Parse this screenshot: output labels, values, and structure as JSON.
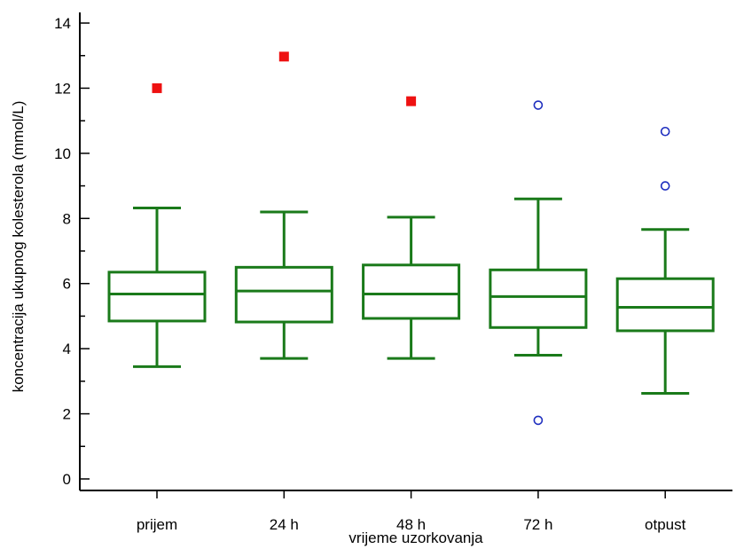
{
  "chart_data": {
    "type": "box",
    "xlabel": "vrijeme uzorkovanja",
    "ylabel": "koncentracija ukupnog kolesterola (mmol/L)",
    "ylim": [
      0,
      14
    ],
    "yticks": [
      0,
      2,
      4,
      6,
      8,
      10,
      12,
      14
    ],
    "grid": false,
    "colors": {
      "box": "#1a7a1a",
      "far_outlier": "#ee1111",
      "outlier": "#1f2fbf"
    },
    "categories": [
      "prijem",
      "24 h",
      "48 h",
      "72 h",
      "otpust"
    ],
    "boxes": [
      {
        "category": "prijem",
        "whisker_low": 3.45,
        "q1": 4.85,
        "median": 5.68,
        "q3": 6.35,
        "whisker_high": 8.32,
        "outliers": [],
        "far_outliers": [
          12.0
        ]
      },
      {
        "category": "24 h",
        "whisker_low": 3.7,
        "q1": 4.82,
        "median": 5.77,
        "q3": 6.5,
        "whisker_high": 8.2,
        "outliers": [],
        "far_outliers": [
          12.97
        ]
      },
      {
        "category": "48 h",
        "whisker_low": 3.7,
        "q1": 4.93,
        "median": 5.68,
        "q3": 6.57,
        "whisker_high": 8.04,
        "outliers": [],
        "far_outliers": [
          11.6
        ]
      },
      {
        "category": "72 h",
        "whisker_low": 3.8,
        "q1": 4.65,
        "median": 5.6,
        "q3": 6.42,
        "whisker_high": 8.6,
        "outliers": [
          11.48,
          1.8
        ],
        "far_outliers": []
      },
      {
        "category": "otpust",
        "whisker_low": 2.63,
        "q1": 4.55,
        "median": 5.27,
        "q3": 6.15,
        "whisker_high": 7.66,
        "outliers": [
          10.67,
          9.0
        ],
        "far_outliers": []
      }
    ]
  }
}
